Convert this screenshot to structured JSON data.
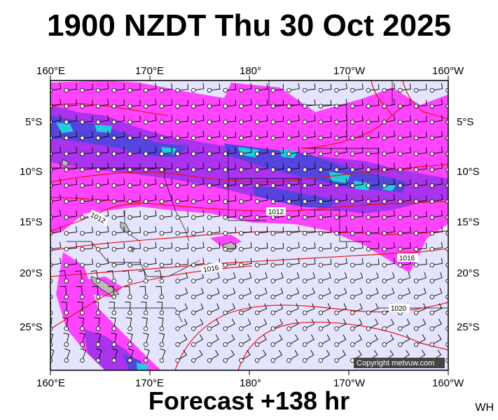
{
  "header": {
    "title": "1900 NZDT Thu 30 Oct 2025"
  },
  "footer": {
    "forecast_label": "Forecast +138 hr",
    "code": "WH"
  },
  "map": {
    "copyright": "Copyright metvuw.com",
    "lon_labels": [
      "160°E",
      "170°E",
      "180°",
      "170°W",
      "160°W"
    ],
    "lat_labels": [
      "5°S",
      "10°S",
      "15°S",
      "20°S",
      "25°S"
    ],
    "isobar_labels": [
      "1012",
      "1012",
      "1016",
      "1016",
      "1020"
    ],
    "colors": {
      "background": "#e4e4ff",
      "rain_light": "#ff44ff",
      "rain_moderate": "#aa33ee",
      "rain_heavy": "#5544dd",
      "rain_very_heavy": "#22ccdd",
      "isobar": "#ee1111",
      "boundary": "#000000"
    }
  }
}
